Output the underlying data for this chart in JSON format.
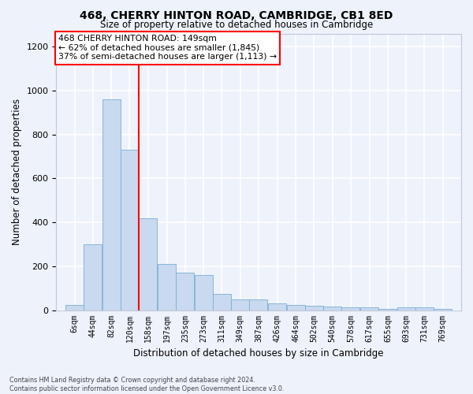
{
  "title1": "468, CHERRY HINTON ROAD, CAMBRIDGE, CB1 8ED",
  "title2": "Size of property relative to detached houses in Cambridge",
  "xlabel": "Distribution of detached houses by size in Cambridge",
  "ylabel": "Number of detached properties",
  "bar_color": "#c9d9ef",
  "bar_edge_color": "#7aafd4",
  "vline_color": "red",
  "categories": [
    "6sqm",
    "44sqm",
    "82sqm",
    "120sqm",
    "158sqm",
    "197sqm",
    "235sqm",
    "273sqm",
    "311sqm",
    "349sqm",
    "387sqm",
    "426sqm",
    "464sqm",
    "502sqm",
    "540sqm",
    "578sqm",
    "617sqm",
    "655sqm",
    "693sqm",
    "731sqm",
    "769sqm"
  ],
  "bin_left_edges": [
    6,
    44,
    82,
    120,
    158,
    197,
    235,
    273,
    311,
    349,
    387,
    426,
    464,
    502,
    540,
    578,
    617,
    655,
    693,
    731,
    769
  ],
  "bin_width": 38,
  "values": [
    25,
    300,
    960,
    730,
    420,
    210,
    170,
    160,
    75,
    50,
    50,
    30,
    25,
    20,
    15,
    13,
    13,
    5,
    13,
    13,
    5
  ],
  "vline_x": 158,
  "ylim": [
    0,
    1260
  ],
  "yticks": [
    0,
    200,
    400,
    600,
    800,
    1000,
    1200
  ],
  "annotation_text": "468 CHERRY HINTON ROAD: 149sqm\n← 62% of detached houses are smaller (1,845)\n37% of semi-detached houses are larger (1,113) →",
  "annotation_box_facecolor": "white",
  "annotation_box_edgecolor": "red",
  "footer_text": "Contains HM Land Registry data © Crown copyright and database right 2024.\nContains public sector information licensed under the Open Government Licence v3.0.",
  "background_color": "#eef2fb",
  "plot_bg_color": "#eef2fb",
  "grid_color": "white",
  "spine_color": "#c0c8d8"
}
